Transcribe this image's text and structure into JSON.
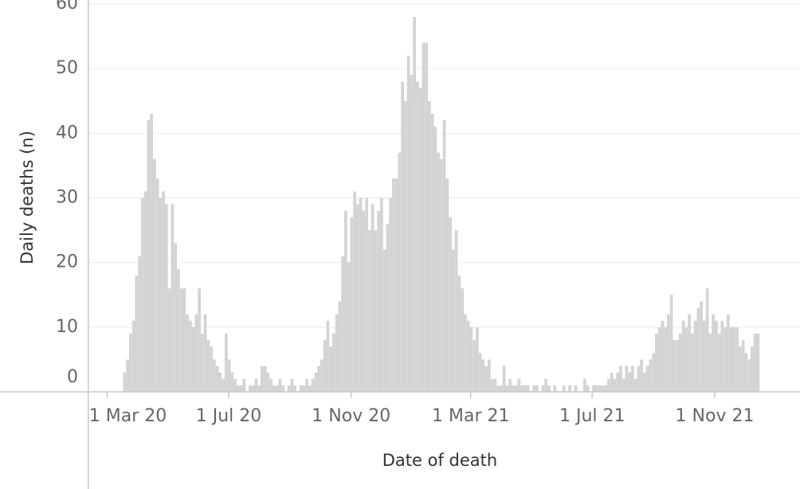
{
  "chart_data": {
    "type": "bar",
    "x_label": "Date of death",
    "y_label": "Daily deaths (n)",
    "color": "#d4d4d4",
    "grid": true,
    "xlim": [
      "2020-02-11",
      "2022-01-25"
    ],
    "ylim": [
      0,
      60
    ],
    "yticks": [
      0,
      10,
      20,
      30,
      40,
      50,
      60
    ],
    "xticks": [
      {
        "value": "2020-03-01",
        "label": "1 Mar 20"
      },
      {
        "value": "2020-07-01",
        "label": "1 Jul 20"
      },
      {
        "value": "2020-11-01",
        "label": "1 Nov 20"
      },
      {
        "value": "2021-03-01",
        "label": "1 Mar 21"
      },
      {
        "value": "2021-07-01",
        "label": "1 Jul 21"
      },
      {
        "value": "2021-11-01",
        "label": "1 Nov 21"
      }
    ],
    "x": [
      "2020-03-17",
      "2020-03-20",
      "2020-03-23",
      "2020-03-26",
      "2020-03-29",
      "2020-04-01",
      "2020-04-04",
      "2020-04-07",
      "2020-04-10",
      "2020-04-13",
      "2020-04-16",
      "2020-04-19",
      "2020-04-22",
      "2020-04-25",
      "2020-04-28",
      "2020-05-01",
      "2020-05-04",
      "2020-05-07",
      "2020-05-10",
      "2020-05-13",
      "2020-05-16",
      "2020-05-19",
      "2020-05-22",
      "2020-05-25",
      "2020-05-28",
      "2020-05-31",
      "2020-06-03",
      "2020-06-06",
      "2020-06-09",
      "2020-06-12",
      "2020-06-15",
      "2020-06-18",
      "2020-06-21",
      "2020-06-24",
      "2020-06-27",
      "2020-06-30",
      "2020-07-03",
      "2020-07-06",
      "2020-07-09",
      "2020-07-12",
      "2020-07-15",
      "2020-07-18",
      "2020-07-21",
      "2020-07-24",
      "2020-07-27",
      "2020-07-30",
      "2020-08-02",
      "2020-08-05",
      "2020-08-08",
      "2020-08-11",
      "2020-08-14",
      "2020-08-17",
      "2020-08-20",
      "2020-08-23",
      "2020-08-26",
      "2020-08-29",
      "2020-09-01",
      "2020-09-04",
      "2020-09-07",
      "2020-09-10",
      "2020-09-13",
      "2020-09-16",
      "2020-09-19",
      "2020-09-22",
      "2020-09-25",
      "2020-09-28",
      "2020-10-01",
      "2020-10-04",
      "2020-10-07",
      "2020-10-10",
      "2020-10-13",
      "2020-10-16",
      "2020-10-19",
      "2020-10-22",
      "2020-10-25",
      "2020-10-28",
      "2020-10-31",
      "2020-11-03",
      "2020-11-06",
      "2020-11-09",
      "2020-11-12",
      "2020-11-15",
      "2020-11-18",
      "2020-11-21",
      "2020-11-24",
      "2020-11-27",
      "2020-11-30",
      "2020-12-03",
      "2020-12-06",
      "2020-12-09",
      "2020-12-12",
      "2020-12-15",
      "2020-12-18",
      "2020-12-21",
      "2020-12-24",
      "2020-12-27",
      "2020-12-30",
      "2021-01-02",
      "2021-01-05",
      "2021-01-08",
      "2021-01-11",
      "2021-01-14",
      "2021-01-17",
      "2021-01-20",
      "2021-01-23",
      "2021-01-26",
      "2021-01-29",
      "2021-02-01",
      "2021-02-04",
      "2021-02-07",
      "2021-02-10",
      "2021-02-13",
      "2021-02-16",
      "2021-02-19",
      "2021-02-22",
      "2021-02-25",
      "2021-02-28",
      "2021-03-03",
      "2021-03-06",
      "2021-03-09",
      "2021-03-12",
      "2021-03-15",
      "2021-03-18",
      "2021-03-21",
      "2021-03-24",
      "2021-03-27",
      "2021-03-30",
      "2021-04-02",
      "2021-04-05",
      "2021-04-08",
      "2021-04-11",
      "2021-04-14",
      "2021-04-17",
      "2021-04-20",
      "2021-04-23",
      "2021-04-26",
      "2021-04-29",
      "2021-05-02",
      "2021-05-05",
      "2021-05-08",
      "2021-05-11",
      "2021-05-14",
      "2021-05-17",
      "2021-05-20",
      "2021-05-23",
      "2021-05-26",
      "2021-05-29",
      "2021-06-01",
      "2021-06-04",
      "2021-06-07",
      "2021-06-10",
      "2021-06-13",
      "2021-06-16",
      "2021-06-19",
      "2021-06-22",
      "2021-06-25",
      "2021-06-28",
      "2021-07-01",
      "2021-07-04",
      "2021-07-07",
      "2021-07-10",
      "2021-07-13",
      "2021-07-16",
      "2021-07-19",
      "2021-07-22",
      "2021-07-25",
      "2021-07-28",
      "2021-07-31",
      "2021-08-03",
      "2021-08-06",
      "2021-08-09",
      "2021-08-12",
      "2021-08-15",
      "2021-08-18",
      "2021-08-21",
      "2021-08-24",
      "2021-08-27",
      "2021-08-30",
      "2021-09-02",
      "2021-09-05",
      "2021-09-08",
      "2021-09-11",
      "2021-09-14",
      "2021-09-17",
      "2021-09-20",
      "2021-09-23",
      "2021-09-26",
      "2021-09-29",
      "2021-10-02",
      "2021-10-05",
      "2021-10-08",
      "2021-10-11",
      "2021-10-14",
      "2021-10-17",
      "2021-10-20",
      "2021-10-23",
      "2021-10-26",
      "2021-10-29",
      "2021-11-01",
      "2021-11-04",
      "2021-11-07",
      "2021-11-10",
      "2021-11-13",
      "2021-11-16",
      "2021-11-19",
      "2021-11-22",
      "2021-11-25",
      "2021-11-28",
      "2021-12-01",
      "2021-12-04",
      "2021-12-07",
      "2021-12-10",
      "2021-12-13"
    ],
    "values": [
      3,
      5,
      9,
      11,
      18,
      21,
      30,
      31,
      42,
      43,
      36,
      33,
      30,
      31,
      29,
      16,
      29,
      23,
      19,
      16,
      16,
      12,
      11,
      10,
      12,
      16,
      9,
      12,
      8,
      7,
      5,
      4,
      3,
      2,
      9,
      5,
      3,
      2,
      1,
      1,
      2,
      0,
      1,
      1,
      2,
      1,
      4,
      4,
      3,
      2,
      1,
      1,
      2,
      1,
      0,
      1,
      2,
      1,
      0,
      1,
      1,
      2,
      1,
      2,
      3,
      4,
      5,
      8,
      11,
      7,
      9,
      12,
      14,
      21,
      28,
      20,
      27,
      31,
      29,
      30,
      28,
      30,
      25,
      29,
      25,
      28,
      30,
      22,
      26,
      30,
      33,
      33,
      37,
      48,
      45,
      52,
      49,
      58,
      48,
      47,
      54,
      54,
      45,
      43,
      41,
      37,
      36,
      42,
      33,
      27,
      22,
      25,
      18,
      16,
      12,
      11,
      10,
      8,
      10,
      6,
      5,
      4,
      5,
      2,
      2,
      1,
      1,
      4,
      1,
      2,
      1,
      1,
      2,
      1,
      1,
      1,
      0,
      1,
      1,
      0,
      1,
      2,
      1,
      0,
      1,
      0,
      0,
      1,
      0,
      1,
      0,
      1,
      0,
      0,
      2,
      1,
      0,
      1,
      1,
      1,
      1,
      1,
      2,
      3,
      2,
      3,
      4,
      2,
      4,
      3,
      4,
      2,
      4,
      5,
      3,
      4,
      5,
      6,
      9,
      10,
      11,
      10,
      12,
      15,
      8,
      8,
      9,
      11,
      10,
      12,
      9,
      11,
      13,
      14,
      11,
      16,
      9,
      12,
      11,
      9,
      11,
      10,
      12,
      10,
      10,
      10,
      7,
      8,
      6,
      5,
      7,
      9,
      9
    ]
  }
}
